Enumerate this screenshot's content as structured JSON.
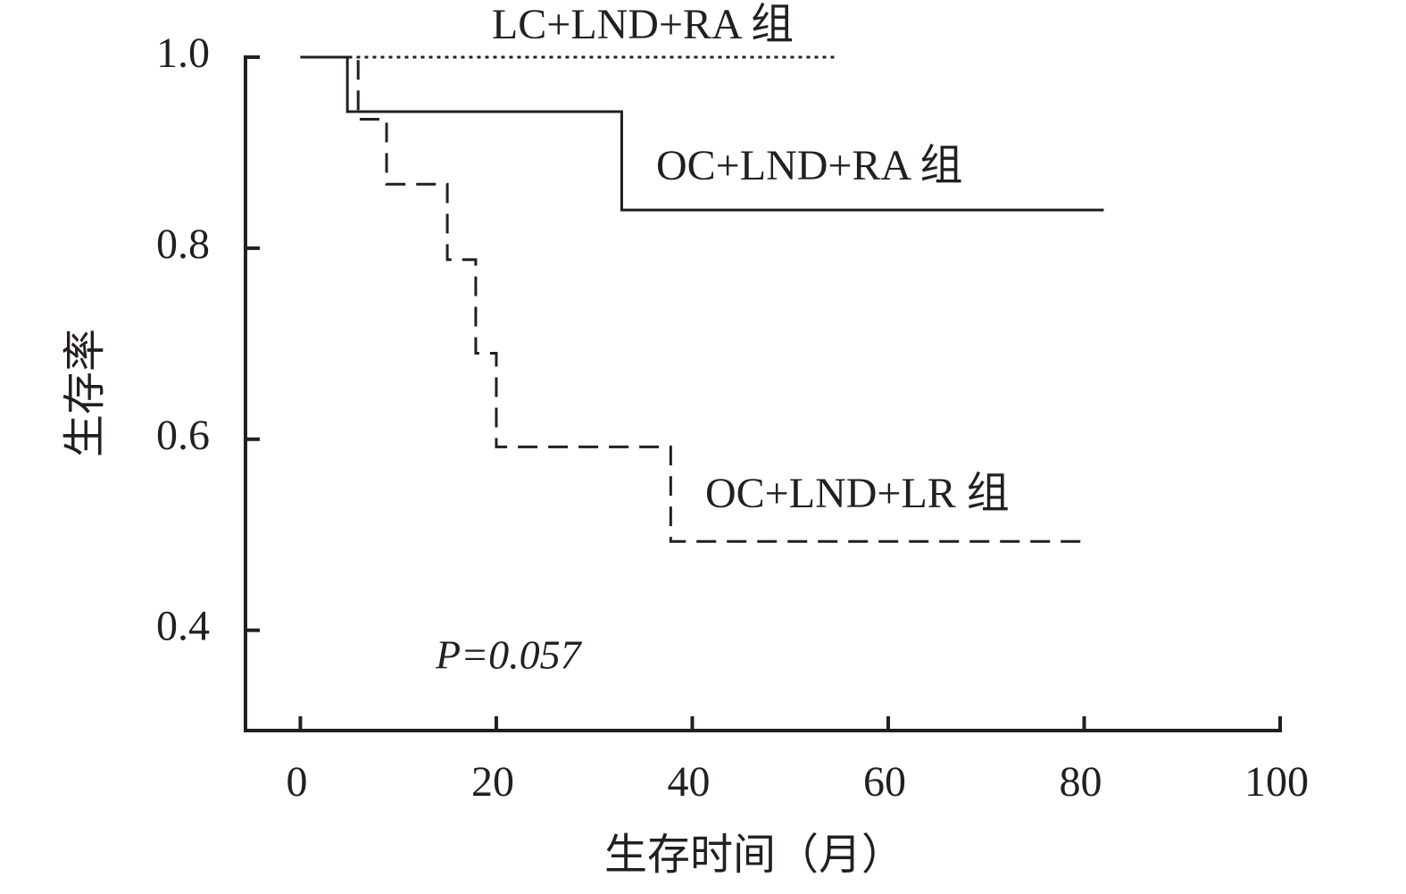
{
  "chart_data": {
    "type": "step",
    "xlabel": "生存时间（月）",
    "ylabel": "生存率",
    "annotation": "P=0.057",
    "xlim": [
      -5.6,
      100
    ],
    "ylim": [
      0.295,
      1.0
    ],
    "xticks": [
      0,
      20,
      40,
      60,
      80,
      100
    ],
    "yticks": [
      0.4,
      0.6,
      0.8,
      {
        "value": 1,
        "label": "1.0"
      }
    ],
    "series": [
      {
        "name": "OC+LND+RA 组",
        "color": "#231f20",
        "dash": "solid",
        "x": [
          0,
          4.8,
          32.8,
          82
        ],
        "values": [
          1.0,
          0.943,
          0.84,
          0.84
        ]
      },
      {
        "name": "LC+LND+RA 组",
        "color": "#231f20",
        "dash": "dotted",
        "x": [
          0,
          54.8
        ],
        "values": [
          1.0,
          1.0
        ]
      },
      {
        "name": "OC+LND+LR 组",
        "color": "#231f20",
        "dash": "dashed",
        "x": [
          0,
          5.9,
          8.8,
          15.0,
          17.9,
          20.0,
          37.8,
          80
        ],
        "values": [
          1.0,
          0.935,
          0.867,
          0.788,
          0.69,
          0.592,
          0.493,
          0.493
        ]
      }
    ]
  }
}
